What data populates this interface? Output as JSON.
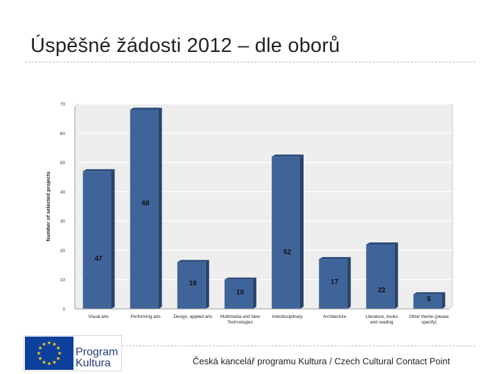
{
  "slide": {
    "title": "Úspěšné žádosti 2012 – dle oborů",
    "footer": "Česká kancelář programu Kultura / Czech Cultural Contact Point"
  },
  "logo": {
    "line1": "Program",
    "line2": "Kultura",
    "flag_blue": "#0d3f9c",
    "star_color": "#f7d117"
  },
  "colors": {
    "bar_front": "#3f6499",
    "bar_side": "#28436b",
    "bar_top": "#2c4d7c",
    "plot_bg": "#eeeeee",
    "grid": "#ffffff"
  },
  "chart_data": {
    "type": "bar",
    "categories": [
      [
        "Visual arts"
      ],
      [
        "Performing arts"
      ],
      [
        "Design, applied arts"
      ],
      [
        "Multimedia and New",
        "Technologies"
      ],
      [
        "Interdisciplinary"
      ],
      [
        "Architecture"
      ],
      [
        "Literature, books",
        "and reading"
      ],
      [
        "Other theme (please",
        "specify)"
      ]
    ],
    "values": [
      47,
      68,
      16,
      10,
      52,
      17,
      22,
      5
    ],
    "ylabel": "Number of selected projects",
    "ylim": [
      0,
      70
    ],
    "yticks": [
      0,
      10,
      20,
      30,
      40,
      50,
      60,
      70
    ],
    "grid": true,
    "legend": "none",
    "style": "3d-columns"
  }
}
